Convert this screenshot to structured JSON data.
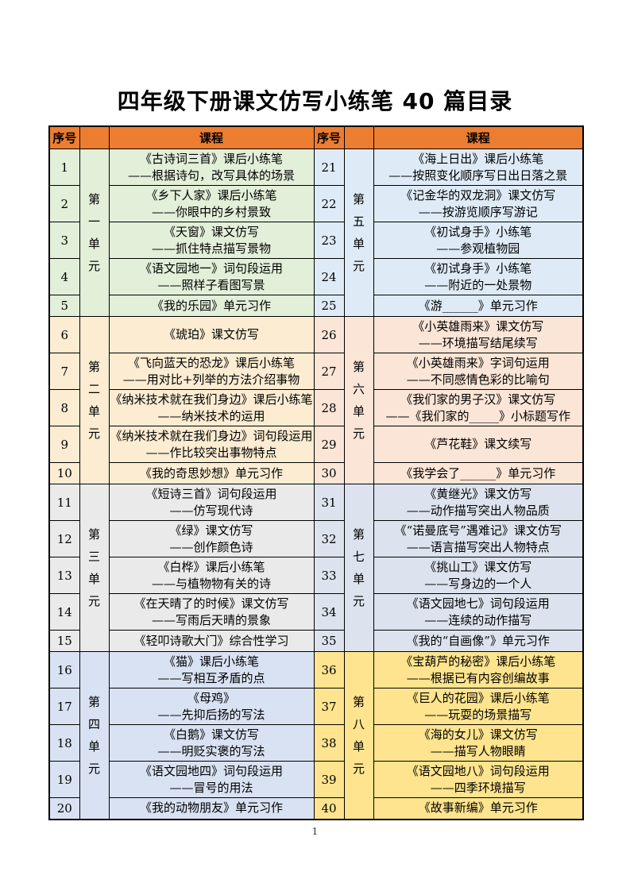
{
  "title": "四年级下册课文仿写小练笔 40 篇目录",
  "page_number": "1",
  "header": {
    "num_label": "序号",
    "course_label": "课程"
  },
  "colors": {
    "header_bg": "#ED7D31",
    "border": "#000000",
    "unit1_bg": "#E2EFD9",
    "unit2_bg": "#FBECD2",
    "unit3_bg": "#EAEAEA",
    "unit4_bg": "#D9E2F3",
    "unit5_bg": "#DEEBF7",
    "unit6_bg": "#FBE5D6",
    "unit7_bg": "#DDE3EE",
    "unit8_bg": "#FEE48E"
  },
  "blocks_left": [
    {
      "unit": "第一单元",
      "bg": "#E2EFD9",
      "rows": [
        {
          "num": "1",
          "lines": [
            "《古诗词三首》课后小练笔",
            "——根据诗句，改写具体的场景"
          ]
        },
        {
          "num": "2",
          "lines": [
            "《乡下人家》课后小练笔",
            "——你眼中的乡村景致"
          ]
        },
        {
          "num": "3",
          "lines": [
            "《天窗》课文仿写",
            "——抓住特点描写景物"
          ]
        },
        {
          "num": "4",
          "lines": [
            "《语文园地一》词句段运用",
            "——照样子看图写景"
          ]
        },
        {
          "num": "5",
          "lines": [
            "《我的乐园》单元习作"
          ]
        }
      ]
    },
    {
      "unit": "第二单元",
      "bg": "#FBECD2",
      "rows": [
        {
          "num": "6",
          "lines": [
            "《琥珀》课文仿写"
          ]
        },
        {
          "num": "7",
          "lines": [
            "《飞向蓝天的恐龙》课后小练笔",
            "——用对比+列举的方法介绍事物"
          ]
        },
        {
          "num": "8",
          "lines": [
            "《纳米技术就在我们身边》课后小练笔",
            "——纳米技术的运用"
          ]
        },
        {
          "num": "9",
          "lines": [
            "《纳米技术就在我们身边》词句段运用",
            "——作比较突出事物特点"
          ]
        },
        {
          "num": "10",
          "lines": [
            "《我的奇思妙想》单元习作"
          ]
        }
      ]
    },
    {
      "unit": "第三单元",
      "bg": "#EAEAEA",
      "rows": [
        {
          "num": "11",
          "lines": [
            "《短诗三首》词句段运用",
            "——仿写现代诗"
          ]
        },
        {
          "num": "12",
          "lines": [
            "《绿》课文仿写",
            "——创作颜色诗"
          ]
        },
        {
          "num": "13",
          "lines": [
            "《白桦》课后小练笔",
            "——与植物物有关的诗"
          ]
        },
        {
          "num": "14",
          "lines": [
            "《在天晴了的时候》课文仿写",
            "——写雨后天晴的景象"
          ]
        },
        {
          "num": "15",
          "lines": [
            "《轻叩诗歌大门》综合性学习"
          ]
        }
      ]
    },
    {
      "unit": "第四单元",
      "bg": "#D9E2F3",
      "rows": [
        {
          "num": "16",
          "lines": [
            "《猫》课后小练笔",
            "——写相互矛盾的点"
          ]
        },
        {
          "num": "17",
          "lines": [
            "《母鸡》",
            "——先抑后扬的写法"
          ]
        },
        {
          "num": "18",
          "lines": [
            "《白鹅》课文仿写",
            "——明贬实褒的写法"
          ]
        },
        {
          "num": "19",
          "lines": [
            "《语文园地四》词句段运用",
            "——冒号的用法"
          ]
        },
        {
          "num": "20",
          "lines": [
            "《我的动物朋友》单元习作"
          ]
        }
      ]
    }
  ],
  "blocks_right": [
    {
      "unit": "第五单元",
      "bg": "#DEEBF7",
      "rows": [
        {
          "num": "21",
          "lines": [
            "《海上日出》课后小练笔",
            "——按照变化顺序写日出日落之景"
          ]
        },
        {
          "num": "22",
          "lines": [
            "《记金华的双龙洞》课文仿写",
            "——按游览顺序写游记"
          ]
        },
        {
          "num": "23",
          "lines": [
            "《初试身手》小练笔",
            "——参观植物园"
          ]
        },
        {
          "num": "24",
          "lines": [
            "《初试身手》小练笔",
            "——附近的一处景物"
          ]
        },
        {
          "num": "25",
          "lines": [
            "《游______》单元习作"
          ]
        }
      ]
    },
    {
      "unit": "第六单元",
      "bg": "#FBE5D6",
      "rows": [
        {
          "num": "26",
          "lines": [
            "《小英雄雨来》课文仿写",
            "——环境描写结尾续写"
          ]
        },
        {
          "num": "27",
          "lines": [
            "《小英雄雨来》字词句运用",
            "——不同感情色彩的比喻句"
          ]
        },
        {
          "num": "28",
          "lines": [
            "《我们家的男子汉》课文仿写",
            "——《我们家的_____》小标题写作"
          ]
        },
        {
          "num": "29",
          "lines": [
            "《芦花鞋》课文续写"
          ]
        },
        {
          "num": "30",
          "lines": [
            "《我学会了______》单元习作"
          ]
        }
      ]
    },
    {
      "unit": "第七单元",
      "bg": "#DDE3EE",
      "rows": [
        {
          "num": "31",
          "lines": [
            "《黄继光》课文仿写",
            "——动作描写突出人物品质"
          ]
        },
        {
          "num": "32",
          "lines": [
            "《“诺曼底号”遇难记》课文仿写",
            "——语言描写突出人物特点"
          ]
        },
        {
          "num": "33",
          "lines": [
            "《挑山工》课文仿写",
            "——写身边的一个人"
          ]
        },
        {
          "num": "34",
          "lines": [
            "《语文园地七》词句段运用",
            "——连续的动作描写"
          ]
        },
        {
          "num": "35",
          "lines": [
            "《我的“自画像”》单元习作"
          ]
        }
      ]
    },
    {
      "unit": "第八单元",
      "bg": "#FEE48E",
      "rows": [
        {
          "num": "36",
          "lines": [
            "《宝葫芦的秘密》课后小练笔",
            "——根据已有内容创编故事"
          ]
        },
        {
          "num": "37",
          "lines": [
            "《巨人的花园》课后小练笔",
            "——玩耍的场景描写"
          ]
        },
        {
          "num": "38",
          "lines": [
            "《海的女儿》课文仿写",
            "——描写人物眼睛"
          ]
        },
        {
          "num": "39",
          "lines": [
            "《语文园地八》词句段运用",
            "——四季环境描写"
          ]
        },
        {
          "num": "40",
          "lines": [
            "《故事新编》单元习作"
          ]
        }
      ]
    }
  ]
}
